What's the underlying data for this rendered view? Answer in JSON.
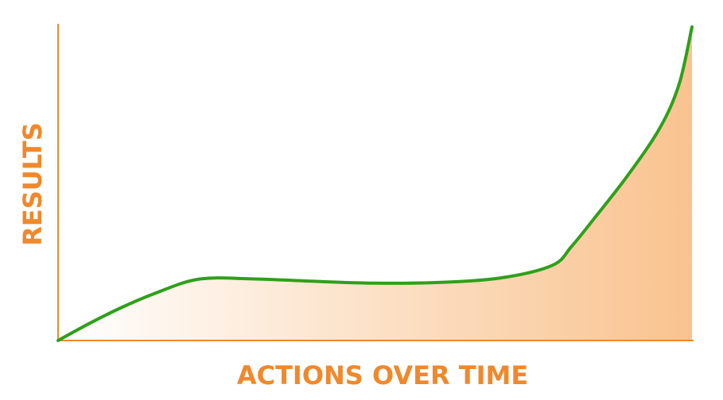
{
  "chart_data": {
    "type": "area",
    "title": "",
    "xlabel": "ACTIONS OVER TIME",
    "ylabel": "RESULTS",
    "xlim": [
      0,
      100
    ],
    "ylim": [
      0,
      100
    ],
    "grid": false,
    "legend": "none",
    "series": [
      {
        "x": [
          0,
          5,
          10,
          15,
          22,
          30,
          40,
          50,
          60,
          70,
          78,
          81,
          85,
          90,
          95,
          98,
          100
        ],
        "y": [
          0,
          5.5,
          10.5,
          14.8,
          19.5,
          19.7,
          18.9,
          18.3,
          18.5,
          20,
          24,
          30,
          40,
          53,
          68,
          82,
          100
        ]
      }
    ],
    "colors": {
      "axis": "#f0882c",
      "line": "#2ea01a",
      "fill": "#f9c38f",
      "label": "#f0882c"
    }
  }
}
